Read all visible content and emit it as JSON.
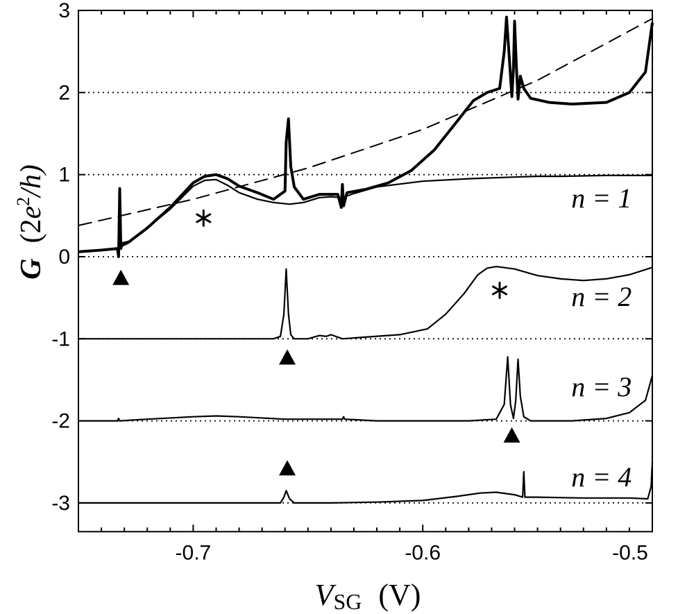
{
  "chart_data": {
    "type": "line",
    "xlabel": {
      "symbol": "V",
      "subscript": "SG",
      "unit": "(V)"
    },
    "ylabel": {
      "symbol": "G",
      "unit_prefix": "(2",
      "unit_e": "e",
      "unit_sup": "2",
      "unit_h": "/h)"
    },
    "xlim": [
      -0.75,
      -0.5
    ],
    "ylim": [
      -3.35,
      3.0
    ],
    "x_ticks": [
      {
        "value": -0.7,
        "label": "-0.7"
      },
      {
        "value": -0.6,
        "label": "-0.6"
      },
      {
        "value": -0.5,
        "label": "-0.5"
      }
    ],
    "y_ticks": [
      {
        "value": 3,
        "label": "3"
      },
      {
        "value": 2,
        "label": "2"
      },
      {
        "value": 1,
        "label": "1"
      },
      {
        "value": 0,
        "label": "0"
      },
      {
        "value": -1,
        "label": "-1"
      },
      {
        "value": -2,
        "label": "-2"
      },
      {
        "value": -3,
        "label": "-3"
      }
    ],
    "reference_lines": [
      2,
      1,
      0,
      -1,
      -2,
      -3
    ],
    "series": [
      {
        "name": "thick trace",
        "style": "thick",
        "x": [
          -0.75,
          -0.74,
          -0.733,
          -0.7325,
          -0.732,
          -0.7315,
          -0.731,
          -0.728,
          -0.72,
          -0.71,
          -0.7,
          -0.695,
          -0.69,
          -0.685,
          -0.68,
          -0.672,
          -0.665,
          -0.66,
          -0.6595,
          -0.6585,
          -0.6575,
          -0.656,
          -0.652,
          -0.645,
          -0.637,
          -0.6355,
          -0.635,
          -0.6345,
          -0.633,
          -0.625,
          -0.615,
          -0.605,
          -0.595,
          -0.585,
          -0.578,
          -0.572,
          -0.5665,
          -0.5645,
          -0.5635,
          -0.5625,
          -0.5612,
          -0.5605,
          -0.56,
          -0.5592,
          -0.5585,
          -0.5575,
          -0.556,
          -0.553,
          -0.545,
          -0.535,
          -0.52,
          -0.51,
          -0.503,
          -0.5
        ],
        "y": [
          0.06,
          0.08,
          0.1,
          0.0,
          0.83,
          0.1,
          0.16,
          0.18,
          0.35,
          0.6,
          0.9,
          0.98,
          1.0,
          0.95,
          0.86,
          0.78,
          0.7,
          0.8,
          1.4,
          1.68,
          1.1,
          0.85,
          0.7,
          0.76,
          0.76,
          0.6,
          0.88,
          0.62,
          0.78,
          0.82,
          0.9,
          1.05,
          1.3,
          1.65,
          1.9,
          2.0,
          2.05,
          2.5,
          2.92,
          2.5,
          1.95,
          2.3,
          2.87,
          2.3,
          1.92,
          2.2,
          2.05,
          1.93,
          1.88,
          1.86,
          1.88,
          2.0,
          2.25,
          2.85
        ]
      },
      {
        "name": "n = 1",
        "style": "thin",
        "x": [
          -0.733,
          -0.728,
          -0.72,
          -0.71,
          -0.7,
          -0.695,
          -0.69,
          -0.685,
          -0.68,
          -0.672,
          -0.665,
          -0.658,
          -0.652,
          -0.645,
          -0.64,
          -0.635,
          -0.63,
          -0.62,
          -0.6,
          -0.58,
          -0.56,
          -0.55,
          -0.54,
          -0.52,
          -0.5
        ],
        "y": [
          0.1,
          0.17,
          0.35,
          0.58,
          0.86,
          0.93,
          0.94,
          0.87,
          0.78,
          0.7,
          0.66,
          0.64,
          0.66,
          0.72,
          0.73,
          0.72,
          0.77,
          0.85,
          0.92,
          0.95,
          0.97,
          0.98,
          0.98,
          0.99,
          0.99
        ]
      },
      {
        "name": "dashed fit",
        "style": "dashed",
        "x": [
          -0.75,
          -0.7,
          -0.65,
          -0.6,
          -0.55,
          -0.5
        ],
        "y": [
          0.38,
          0.7,
          1.08,
          1.55,
          2.15,
          2.9
        ]
      },
      {
        "name": "n = 2",
        "style": "thin",
        "x": [
          -0.75,
          -0.7,
          -0.665,
          -0.662,
          -0.6605,
          -0.6595,
          -0.6585,
          -0.6575,
          -0.656,
          -0.65,
          -0.645,
          -0.642,
          -0.64,
          -0.635,
          -0.625,
          -0.61,
          -0.598,
          -0.59,
          -0.582,
          -0.576,
          -0.572,
          -0.568,
          -0.56,
          -0.55,
          -0.54,
          -0.53,
          -0.52,
          -0.51,
          -0.5
        ],
        "y": [
          -1.0,
          -1.0,
          -1.0,
          -0.97,
          -0.7,
          -0.15,
          -0.7,
          -0.95,
          -1.0,
          -1.0,
          -0.96,
          -0.97,
          -0.95,
          -1.0,
          -0.98,
          -0.95,
          -0.88,
          -0.7,
          -0.45,
          -0.22,
          -0.14,
          -0.12,
          -0.15,
          -0.23,
          -0.27,
          -0.29,
          -0.27,
          -0.22,
          -0.13
        ]
      },
      {
        "name": "n = 3",
        "style": "thin",
        "x": [
          -0.75,
          -0.733,
          -0.7325,
          -0.732,
          -0.72,
          -0.7,
          -0.69,
          -0.68,
          -0.66,
          -0.64,
          -0.635,
          -0.6345,
          -0.634,
          -0.62,
          -0.6,
          -0.58,
          -0.568,
          -0.5645,
          -0.563,
          -0.5618,
          -0.5605,
          -0.5595,
          -0.5585,
          -0.5575,
          -0.556,
          -0.553,
          -0.545,
          -0.535,
          -0.52,
          -0.51,
          -0.503,
          -0.5
        ],
        "y": [
          -2.0,
          -2.0,
          -1.97,
          -2.0,
          -1.98,
          -1.95,
          -1.94,
          -1.95,
          -1.98,
          -1.98,
          -1.98,
          -1.95,
          -1.98,
          -2.0,
          -2.0,
          -2.0,
          -1.98,
          -1.8,
          -1.22,
          -1.8,
          -1.97,
          -1.75,
          -1.25,
          -1.7,
          -1.95,
          -2.0,
          -2.0,
          -2.0,
          -1.97,
          -1.9,
          -1.75,
          -1.45
        ]
      },
      {
        "name": "n = 4",
        "style": "thin",
        "x": [
          -0.75,
          -0.7,
          -0.662,
          -0.6605,
          -0.6595,
          -0.658,
          -0.656,
          -0.64,
          -0.62,
          -0.6,
          -0.585,
          -0.575,
          -0.568,
          -0.56,
          -0.5565,
          -0.556,
          -0.5555,
          -0.55,
          -0.53,
          -0.51,
          -0.502,
          -0.5005,
          -0.5
        ],
        "y": [
          -3.0,
          -3.0,
          -3.0,
          -2.93,
          -2.85,
          -2.95,
          -3.0,
          -3.0,
          -2.99,
          -2.97,
          -2.92,
          -2.88,
          -2.87,
          -2.9,
          -2.93,
          -2.62,
          -2.93,
          -2.93,
          -2.94,
          -2.94,
          -2.95,
          -2.8,
          -2.5
        ]
      }
    ],
    "curve_labels": [
      {
        "text": "n = 1",
        "x": -0.509,
        "y": 0.72
      },
      {
        "text": "n = 2",
        "x": -0.509,
        "y": -0.48
      },
      {
        "text": "n = 3",
        "x": -0.509,
        "y": -1.58
      },
      {
        "text": "n = 4",
        "x": -0.509,
        "y": -2.68
      }
    ],
    "markers": [
      {
        "kind": "triangle",
        "x": -0.7315,
        "y": -0.26
      },
      {
        "kind": "triangle",
        "x": -0.659,
        "y": -1.23
      },
      {
        "kind": "triangle",
        "x": -0.5612,
        "y": -2.18
      },
      {
        "kind": "triangle",
        "x": -0.659,
        "y": -2.58
      },
      {
        "kind": "asterisk",
        "x": -0.6955,
        "y": 0.47
      },
      {
        "kind": "asterisk",
        "x": -0.5665,
        "y": -0.41
      }
    ]
  }
}
